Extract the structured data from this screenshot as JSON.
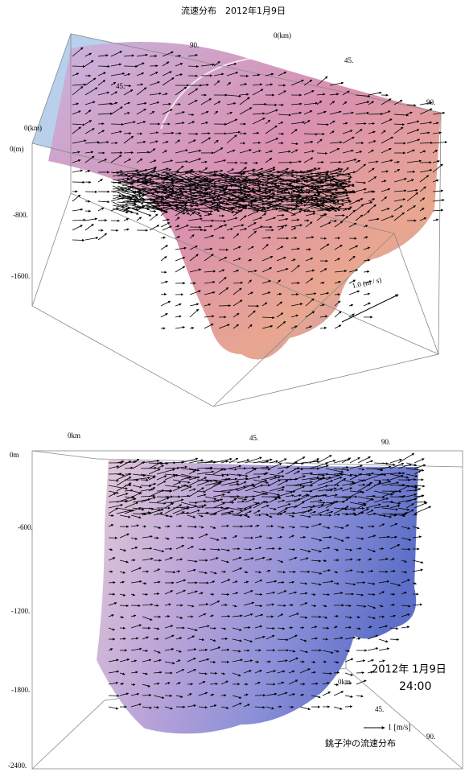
{
  "top_panel": {
    "title": "流速分布　2012年1月9日",
    "axis_labels": [
      "0(km)",
      "90.",
      "45.",
      "45.",
      "90.",
      "0(km)",
      "0(m)",
      "-800.",
      "-1600."
    ],
    "scale_label": "1.0 (m / s)"
  },
  "bottom_panel": {
    "axis_labels": [
      "0km",
      "45.",
      "90.",
      "0m",
      "-600.",
      "-1200.",
      "-1800.",
      "-2400.",
      "0km",
      "45.",
      "90."
    ],
    "date": "2012年 1月9日",
    "time": "24:00",
    "scale_label": "1 [m/s]",
    "caption": "銚子沖の流速分布"
  }
}
